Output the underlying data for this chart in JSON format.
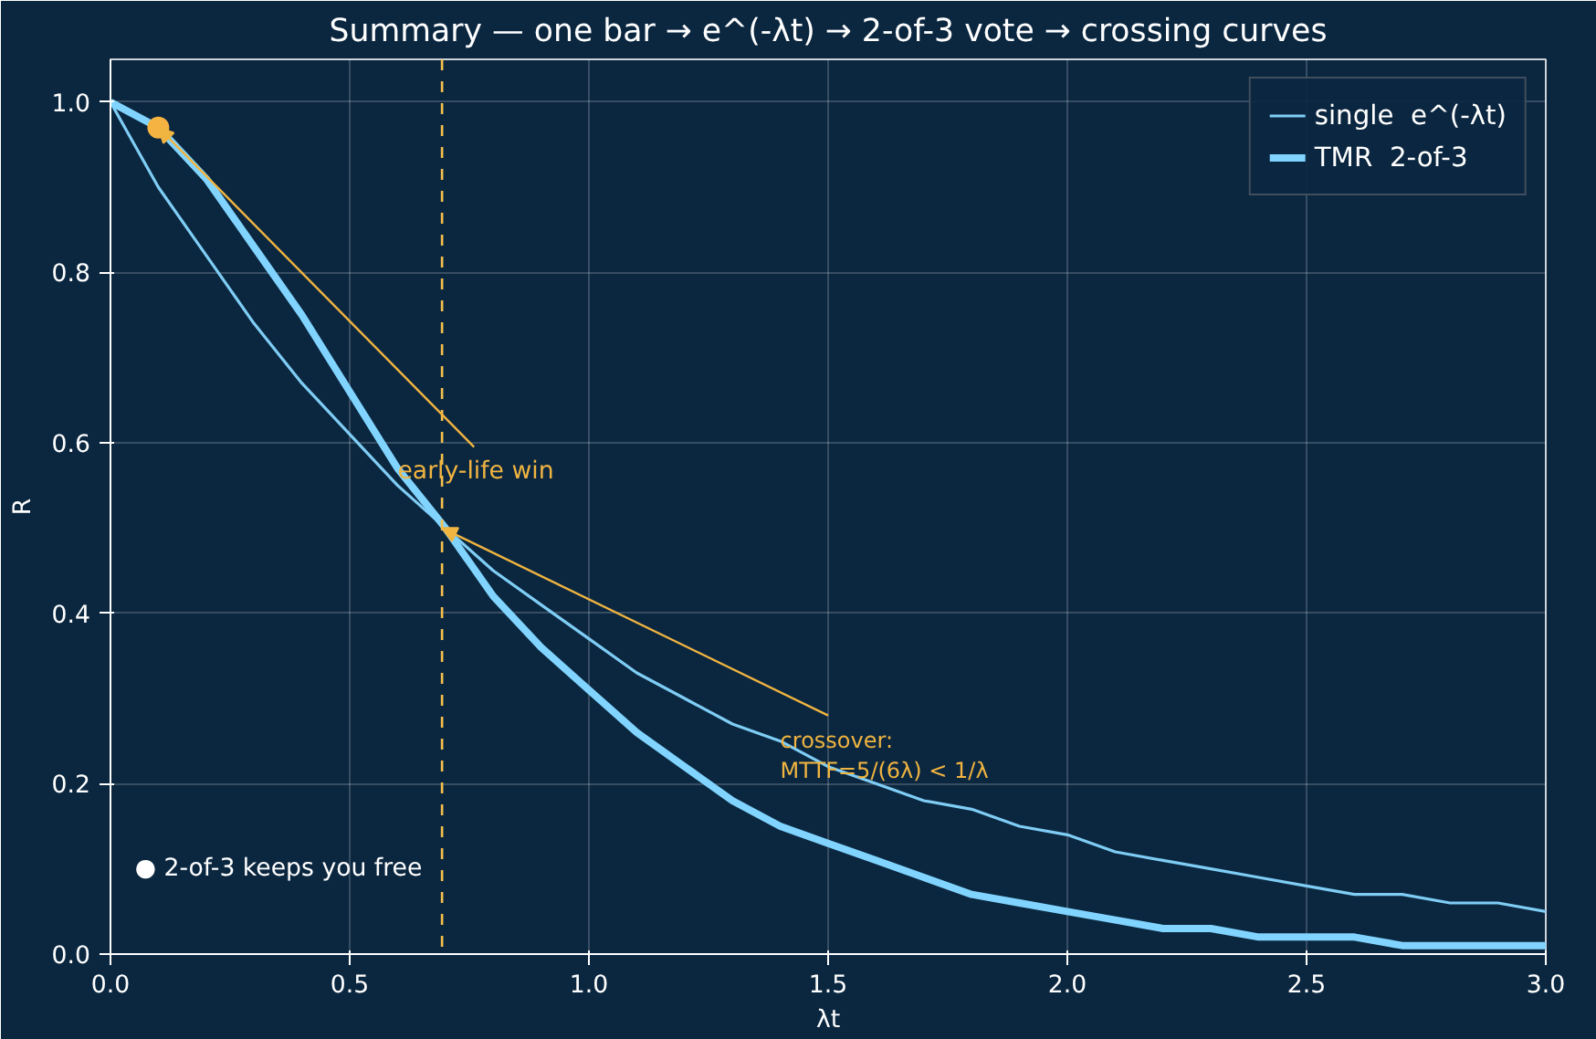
{
  "chart_data": {
    "type": "line",
    "title": "Summary — one bar → e^(-λt) → 2-of-3 vote → crossing curves",
    "xlabel": "λt",
    "ylabel": "R",
    "x": [
      0,
      0.1,
      0.2,
      0.3,
      0.4,
      0.5,
      0.6,
      0.7,
      0.8,
      0.9,
      1.0,
      1.1,
      1.2,
      1.3,
      1.4,
      1.5,
      1.6,
      1.7,
      1.8,
      1.9,
      2.0,
      2.1,
      2.2,
      2.3,
      2.4,
      2.5,
      2.6,
      2.7,
      2.8,
      2.9,
      3.0
    ],
    "series": [
      {
        "name": "single  e^(-λt)",
        "color": "#7fcdf5",
        "values": [
          1.0,
          0.9,
          0.82,
          0.74,
          0.67,
          0.61,
          0.55,
          0.5,
          0.45,
          0.41,
          0.37,
          0.33,
          0.3,
          0.27,
          0.25,
          0.22,
          0.2,
          0.18,
          0.17,
          0.15,
          0.14,
          0.12,
          0.11,
          0.1,
          0.09,
          0.08,
          0.07,
          0.07,
          0.06,
          0.06,
          0.05
        ]
      },
      {
        "name": "TMR  2-of-3",
        "color": "#80d4ff",
        "values": [
          1.0,
          0.97,
          0.91,
          0.83,
          0.75,
          0.66,
          0.57,
          0.5,
          0.42,
          0.36,
          0.31,
          0.26,
          0.22,
          0.18,
          0.15,
          0.13,
          0.11,
          0.09,
          0.07,
          0.06,
          0.05,
          0.04,
          0.03,
          0.03,
          0.02,
          0.02,
          0.02,
          0.01,
          0.01,
          0.01,
          0.01
        ]
      },
      {
        "type": "scatter",
        "color": "#f5b342",
        "x": [
          0.1
        ],
        "values": [
          0.97
        ]
      }
    ],
    "xlim": [
      0,
      3
    ],
    "ylim": [
      0,
      1.05
    ],
    "xticks": [
      {
        "value": 0,
        "label": "0.0"
      },
      0.5,
      {
        "value": 1,
        "label": "1.0"
      },
      1.5,
      {
        "value": 2,
        "label": "2.0"
      },
      2.5,
      {
        "value": 3,
        "label": "3.0"
      }
    ],
    "yticks": [
      {
        "value": 0,
        "label": "0.0"
      },
      0.2,
      0.4,
      0.6,
      0.8,
      {
        "value": 1,
        "label": "1.0"
      }
    ],
    "grid": true,
    "legend": "top right",
    "ref_lines": [
      {
        "axis": "x",
        "value": 0.693,
        "color": "#f5c04a",
        "line_style": "dashed"
      }
    ],
    "annotations": [
      {
        "text": "early-life win",
        "x": 0.1,
        "y": 0.97
      },
      {
        "text": "crossover:\nMTTF=5/(6λ) < 1/λ",
        "x": 0.693,
        "y": 0.5
      },
      "● 2-of-3 keeps you free"
    ]
  }
}
